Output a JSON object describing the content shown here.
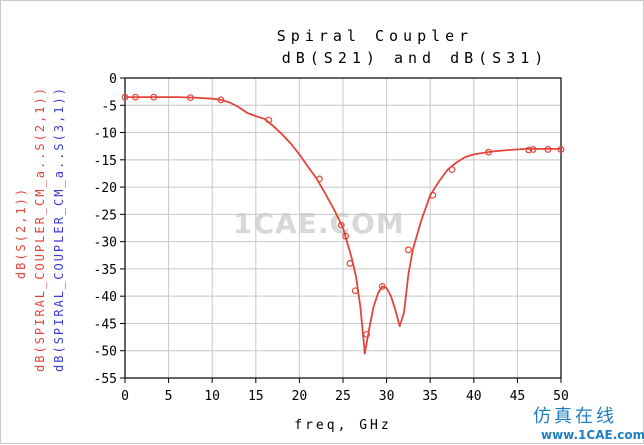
{
  "chart_data": {
    "type": "line",
    "title_line1": "Spiral Coupler",
    "title_line2": "dB(S21) and dB(S31)",
    "xlabel": "freq, GHz",
    "ylabels": [
      {
        "text": "dB(SPIRAL_COUPLER_CM_a..S(3,1))",
        "color": "#3b3bd6"
      },
      {
        "text": "dB(SPIRAL_COUPLER_CM_a..S(2,1))",
        "color": "#e2453a"
      },
      {
        "text": "dB(S(2,1))",
        "color": "#e2453a"
      }
    ],
    "xlim": [
      0,
      50
    ],
    "ylim": [
      -55,
      0
    ],
    "x_ticks": [
      0,
      5,
      10,
      15,
      20,
      25,
      30,
      35,
      40,
      45,
      50
    ],
    "x_tick_labels": [
      "0",
      "5",
      "10",
      "15",
      "20",
      "25",
      "30",
      "35",
      "40",
      "45",
      "50"
    ],
    "y_ticks": [
      0,
      -5,
      -10,
      -15,
      -20,
      -25,
      -30,
      -35,
      -40,
      -45,
      -50,
      -55
    ],
    "y_tick_labels": [
      "0",
      "-5",
      "-10",
      "-15",
      "-20",
      "-25",
      "-30",
      "-35",
      "-40",
      "-45",
      "-50",
      "-55"
    ],
    "grid": true,
    "series": [
      {
        "color": "#e2453a",
        "x": [
          0,
          2,
          4,
          6,
          8,
          10,
          11,
          12,
          13,
          14,
          15,
          16,
          17,
          18,
          19,
          20,
          21,
          22,
          23,
          24,
          25,
          26,
          26.5,
          27,
          27.5,
          28,
          28.5,
          29,
          29.5,
          30,
          30.5,
          31,
          31.5,
          32,
          32.5,
          33,
          34,
          35,
          36,
          37,
          38,
          39,
          40,
          42,
          44,
          46,
          48,
          50
        ],
        "y": [
          -3.5,
          -3.5,
          -3.5,
          -3.5,
          -3.6,
          -3.8,
          -4.0,
          -4.5,
          -5.3,
          -6.4,
          -7.0,
          -7.5,
          -8.8,
          -10.3,
          -12.0,
          -14.0,
          -16.3,
          -18.5,
          -21.3,
          -24.2,
          -27.5,
          -33.0,
          -36.5,
          -42.0,
          -50.5,
          -46.0,
          -42.0,
          -39.5,
          -38.2,
          -38.5,
          -40.0,
          -42.5,
          -45.5,
          -43.0,
          -36.0,
          -31.5,
          -26.0,
          -21.5,
          -19.0,
          -16.8,
          -15.5,
          -14.5,
          -14.0,
          -13.5,
          -13.2,
          -13.0,
          -13.0,
          -13.0
        ]
      }
    ],
    "markers": {
      "color": "#e2453a",
      "x": [
        0,
        1.2,
        3.3,
        7.5,
        11,
        16.5,
        22.3,
        24.8,
        25.3,
        25.8,
        26.4,
        27.7,
        29.5,
        32.5,
        35.3,
        37.5,
        41.7,
        46.3,
        46.8,
        48.5,
        50
      ],
      "y": [
        -3.5,
        -3.5,
        -3.5,
        -3.6,
        -4.0,
        -7.7,
        -18.5,
        -27.0,
        -29.0,
        -34.0,
        -39.0,
        -47.0,
        -38.2,
        -31.5,
        -21.5,
        -16.8,
        -13.6,
        -13.2,
        -13.1,
        -13.1,
        -13.1
      ]
    }
  },
  "watermark": "1CAE.COM",
  "brand": {
    "cn": "仿真在线",
    "url": "www.1CAE.com"
  }
}
